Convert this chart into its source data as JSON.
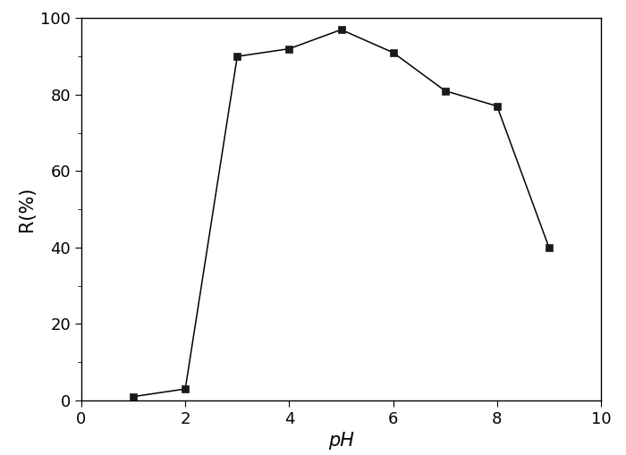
{
  "x": [
    1,
    2,
    3,
    4,
    5,
    6,
    7,
    8,
    9
  ],
  "y": [
    1,
    3,
    90,
    92,
    97,
    91,
    81,
    77,
    40
  ],
  "xlabel": "pH",
  "ylabel": "R(%)",
  "xlim": [
    0,
    10
  ],
  "ylim": [
    0,
    100
  ],
  "xticks": [
    0,
    2,
    4,
    6,
    8,
    10
  ],
  "yticks": [
    0,
    20,
    40,
    60,
    80,
    100
  ],
  "line_color": "#000000",
  "marker": "s",
  "marker_color": "#1a1a1a",
  "marker_size": 6,
  "line_width": 1.1,
  "background_color": "#ffffff",
  "top_grid_color": "#c8c8c8",
  "xlabel_fontsize": 15,
  "ylabel_fontsize": 15,
  "tick_fontsize": 13
}
